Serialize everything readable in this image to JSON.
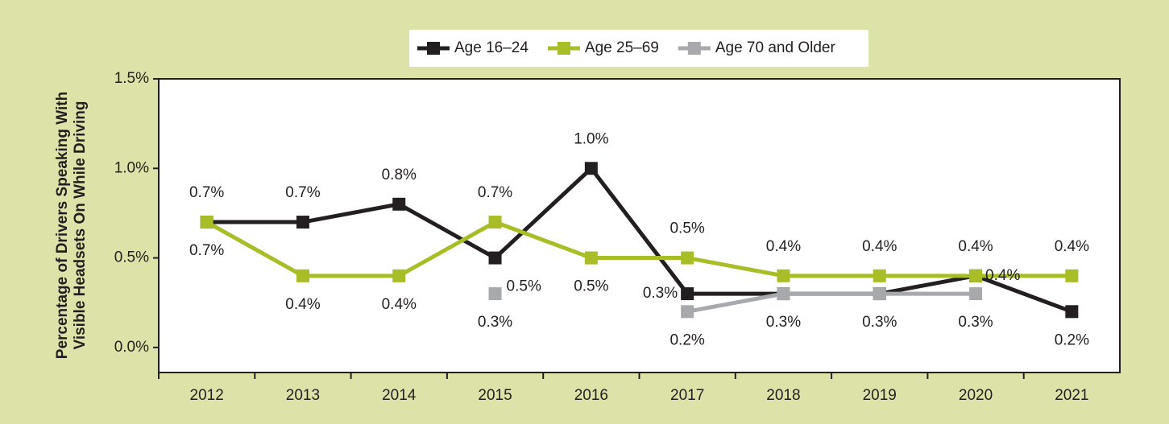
{
  "chart_data": {
    "type": "line",
    "y_label": [
      "Percentage of Drivers Speaking With",
      "Visible Headsets On While Driving"
    ],
    "categories": [
      "2012",
      "2013",
      "2014",
      "2015",
      "2016",
      "2017",
      "2018",
      "2019",
      "2020",
      "2021"
    ],
    "series": [
      {
        "name": "Age 16–24",
        "color": "#231f20",
        "values": [
          0.7,
          0.7,
          0.8,
          0.5,
          1.0,
          0.3,
          0.3,
          0.3,
          0.4,
          0.2
        ],
        "value_labels": [
          "0.7%",
          "0.7%",
          "0.8%",
          "0.5%",
          "1.0%",
          "0.3%",
          "0.3%",
          "0.3%",
          "0.4%",
          "0.2%"
        ]
      },
      {
        "name": "Age 25–69",
        "color": "#a9bd26",
        "values": [
          0.7,
          0.4,
          0.4,
          0.7,
          0.5,
          0.5,
          0.4,
          0.4,
          0.4,
          0.4
        ],
        "value_labels": [
          "0.7%",
          "0.4%",
          "0.4%",
          "0.7%",
          "0.5%",
          "0.5%",
          "0.4%",
          "0.4%",
          "0.4%",
          "0.4%"
        ]
      },
      {
        "name": "Age 70 and Older",
        "color": "#a7a9ac",
        "values": [
          null,
          null,
          null,
          0.3,
          null,
          0.2,
          0.3,
          0.3,
          0.3,
          null
        ],
        "value_labels": [
          null,
          null,
          null,
          "0.3%",
          null,
          "0.2%",
          null,
          null,
          "0.3%",
          null
        ]
      }
    ],
    "ylim": [
      -0.14,
      1.5
    ],
    "yticks": [
      {
        "value": 0,
        "label": "0.0%"
      },
      {
        "value": 0.5,
        "label": "0.5%"
      },
      {
        "value": 1.0,
        "label": "1.0%"
      },
      {
        "value": 1.5,
        "label": "1.5%"
      }
    ],
    "legend": "top"
  }
}
